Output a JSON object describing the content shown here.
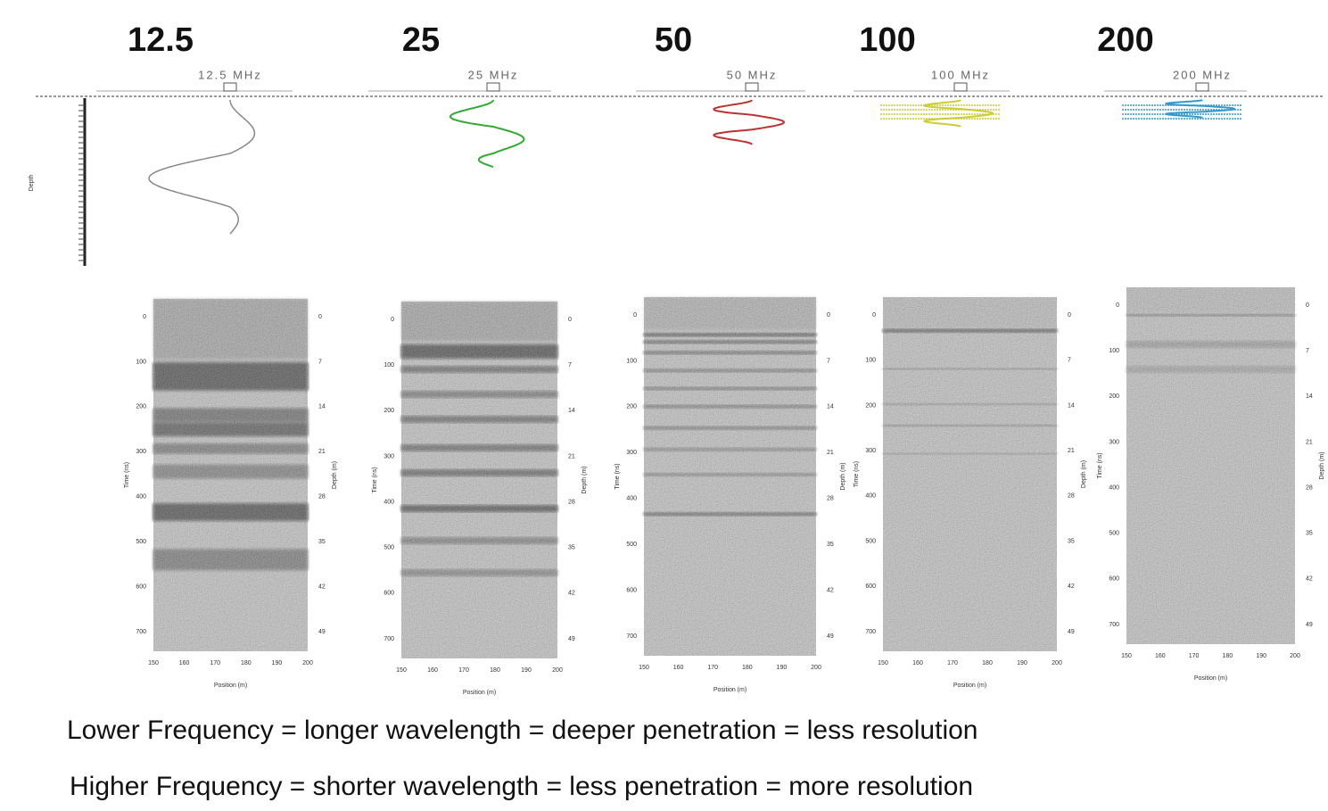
{
  "header": {
    "frequencies": [
      "12.5",
      "25",
      "50",
      "100",
      "200"
    ]
  },
  "wavelet_plot": {
    "depth_label": "Depth",
    "wavelet_labels": [
      "12.5 MHz",
      "25 MHz",
      "50 MHz",
      "100 MHz",
      "200 MHz"
    ]
  },
  "radargram_axes": {
    "time_label": "Time (ns)",
    "depth_label": "Depth (m)",
    "position_label": "Position (m)",
    "time_ticks": [
      "0",
      "100",
      "200",
      "300",
      "400",
      "500",
      "600",
      "700"
    ],
    "depth_ticks": [
      "0",
      "7",
      "14",
      "21",
      "28",
      "35",
      "42",
      "49"
    ],
    "position_ticks": [
      "150",
      "160",
      "170",
      "180",
      "190",
      "200"
    ]
  },
  "caption": {
    "lines": [
      "Lower Frequency = longer wavelength = deeper penetration = less resolution",
      "Higher Frequency = shorter wavelength = less penetration = more resolution"
    ]
  }
}
